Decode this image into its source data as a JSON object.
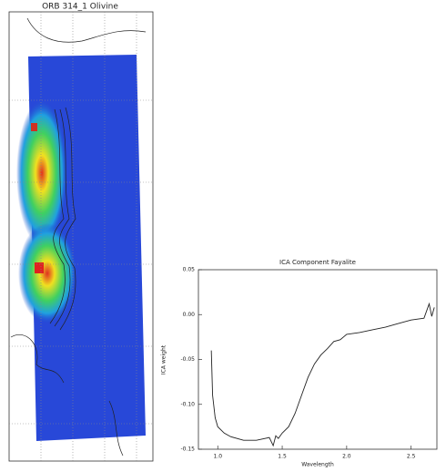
{
  "map": {
    "title": "ORB 314_1 Olivine"
  },
  "chart_data": {
    "type": "line",
    "title": "ICA Component Fayalite",
    "x_label": "Wavelength",
    "y_label": "ICA weight",
    "x": [
      0.95,
      0.96,
      0.98,
      1.0,
      1.05,
      1.1,
      1.2,
      1.3,
      1.4,
      1.43,
      1.45,
      1.47,
      1.5,
      1.55,
      1.6,
      1.65,
      1.7,
      1.75,
      1.8,
      1.85,
      1.9,
      1.95,
      2.0,
      2.1,
      2.2,
      2.3,
      2.4,
      2.5,
      2.6,
      2.64,
      2.66,
      2.68
    ],
    "series": [
      {
        "color": "#222222",
        "values": [
          -0.04,
          -0.09,
          -0.115,
          -0.125,
          -0.132,
          -0.136,
          -0.14,
          -0.14,
          -0.137,
          -0.146,
          -0.135,
          -0.138,
          -0.132,
          -0.125,
          -0.11,
          -0.09,
          -0.07,
          -0.055,
          -0.045,
          -0.038,
          -0.03,
          -0.028,
          -0.022,
          -0.02,
          -0.017,
          -0.014,
          -0.01,
          -0.006,
          -0.004,
          0.012,
          -0.002,
          0.008
        ]
      }
    ],
    "xlim": [
      0.85,
      2.7
    ],
    "xticks": [
      {
        "value": 1,
        "label": "1.0"
      },
      {
        "value": 1.5,
        "label": "1.5"
      },
      {
        "value": 2,
        "label": "2.0"
      },
      {
        "value": 2.5,
        "label": "2.5"
      }
    ],
    "ylim": [
      -0.15,
      0.05
    ],
    "yticks": [
      {
        "value": -0.15,
        "label": "-0.15"
      },
      {
        "value": -0.1,
        "label": "-0.10"
      },
      {
        "value": -0.05,
        "label": "-0.05"
      },
      {
        "value": 0,
        "label": "0.00"
      },
      0.05
    ]
  }
}
